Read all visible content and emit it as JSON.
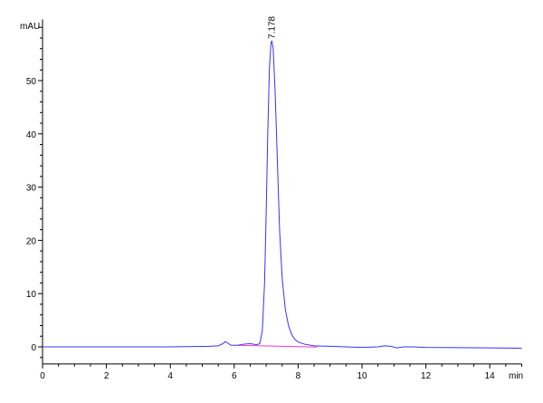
{
  "chart_data": {
    "type": "line",
    "title": "",
    "xlabel": "min",
    "ylabel": "mAU",
    "xlim": [
      0,
      15
    ],
    "ylim": [
      -3.2,
      61.5
    ],
    "x_ticks": [
      0,
      2,
      4,
      6,
      8,
      10,
      12,
      14
    ],
    "y_ticks": [
      0,
      10,
      20,
      30,
      40,
      50
    ],
    "grid": false,
    "colors": {
      "trace": "#3333ff",
      "baseline": "#ff33cc",
      "axis": "#000000"
    },
    "series": [
      {
        "x": [
          0,
          4,
          5.2,
          5.5,
          5.65,
          5.72,
          5.8,
          5.9,
          6.1,
          6.3,
          6.5,
          6.7,
          6.8,
          6.88,
          6.95,
          7.0,
          7.05,
          7.1,
          7.15,
          7.178,
          7.22,
          7.28,
          7.35,
          7.42,
          7.5,
          7.6,
          7.7,
          7.8,
          7.9,
          8.0,
          8.2,
          8.5,
          9,
          10,
          10.5,
          10.7,
          10.9,
          11.1,
          11.3,
          11.6,
          12,
          14,
          15
        ],
        "y": [
          0,
          0,
          0.1,
          0.2,
          0.6,
          1.0,
          0.7,
          0.3,
          0.3,
          0.5,
          0.6,
          0.4,
          0.6,
          3,
          12,
          25,
          40,
          52,
          57,
          57.5,
          56,
          48,
          35,
          22,
          13,
          7,
          4,
          2.3,
          1.4,
          0.9,
          0.5,
          0.2,
          0.1,
          -0.1,
          0,
          0.2,
          0.1,
          -0.2,
          0,
          0,
          -0.1,
          -0.2,
          -0.25
        ]
      }
    ],
    "integration_baseline": {
      "x": [
        6.1,
        8.6
      ],
      "y": [
        0.3,
        -0.05
      ]
    },
    "annotations": [
      {
        "label": "7.178",
        "x": 7.178,
        "y": 57.5
      }
    ]
  }
}
